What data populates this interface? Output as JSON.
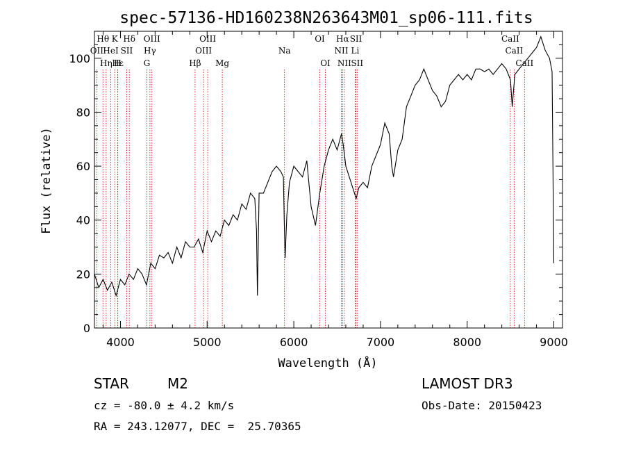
{
  "chart_data": {
    "type": "line",
    "title": "spec-57136-HD160238N263643M01_sp06-111.fits",
    "xlabel": "Wavelength (Å)",
    "ylabel": "Flux (relative)",
    "xlim": [
      3700,
      9100
    ],
    "ylim": [
      0,
      110
    ],
    "x_ticks": [
      4000,
      5000,
      6000,
      7000,
      8000,
      9000
    ],
    "y_ticks": [
      0,
      20,
      40,
      60,
      80,
      100
    ],
    "grid": false,
    "series": [
      {
        "color": "#000000",
        "x": [
          3700,
          3750,
          3800,
          3850,
          3900,
          3950,
          4000,
          4050,
          4100,
          4150,
          4200,
          4250,
          4300,
          4350,
          4400,
          4450,
          4500,
          4550,
          4600,
          4650,
          4700,
          4750,
          4800,
          4850,
          4900,
          4950,
          5000,
          5050,
          5100,
          5150,
          5200,
          5250,
          5300,
          5350,
          5400,
          5450,
          5500,
          5550,
          5570,
          5580,
          5600,
          5650,
          5700,
          5750,
          5800,
          5850,
          5880,
          5890,
          5900,
          5920,
          5950,
          6000,
          6050,
          6100,
          6150,
          6200,
          6250,
          6300,
          6350,
          6400,
          6450,
          6500,
          6550,
          6570,
          6600,
          6650,
          6700,
          6720,
          6750,
          6800,
          6850,
          6900,
          6950,
          7000,
          7050,
          7100,
          7130,
          7150,
          7200,
          7250,
          7300,
          7350,
          7400,
          7450,
          7500,
          7550,
          7600,
          7650,
          7700,
          7750,
          7800,
          7850,
          7900,
          7950,
          8000,
          8050,
          8100,
          8150,
          8200,
          8250,
          8300,
          8350,
          8400,
          8450,
          8500,
          8520,
          8550,
          8600,
          8650,
          8700,
          8750,
          8800,
          8850,
          8900,
          8950,
          8980,
          9000
        ],
        "y": [
          20,
          15,
          18,
          14,
          17,
          12,
          18,
          16,
          20,
          18,
          22,
          20,
          16,
          24,
          22,
          27,
          26,
          28,
          24,
          30,
          26,
          32,
          30,
          30,
          33,
          28,
          36,
          32,
          36,
          34,
          40,
          38,
          42,
          40,
          46,
          44,
          50,
          48,
          36,
          12,
          50,
          50,
          54,
          58,
          60,
          58,
          56,
          40,
          26,
          42,
          54,
          60,
          58,
          56,
          62,
          45,
          38,
          50,
          60,
          66,
          70,
          66,
          72,
          68,
          60,
          55,
          50,
          48,
          52,
          54,
          52,
          60,
          64,
          68,
          76,
          72,
          60,
          56,
          66,
          70,
          82,
          86,
          90,
          92,
          96,
          92,
          88,
          86,
          82,
          84,
          90,
          92,
          94,
          92,
          94,
          92,
          96,
          96,
          95,
          96,
          94,
          96,
          98,
          96,
          92,
          82,
          94,
          96,
          98,
          100,
          102,
          104,
          108,
          103,
          100,
          95,
          24
        ]
      }
    ],
    "spectral_lines": [
      {
        "label": "Hθ",
        "wavelength": 3798,
        "row": 0
      },
      {
        "label": "K",
        "wavelength": 3934,
        "row": 0
      },
      {
        "label": "Hδ",
        "wavelength": 4102,
        "row": 0
      },
      {
        "label": "OIII",
        "wavelength": 4363,
        "row": 0
      },
      {
        "label": "OIII",
        "wavelength": 5007,
        "row": 0
      },
      {
        "label": "OI",
        "wavelength": 6300,
        "row": 0
      },
      {
        "label": "Hα",
        "wavelength": 6563,
        "row": 0
      },
      {
        "label": "SII",
        "wavelength": 6717,
        "row": 0
      },
      {
        "label": "CaII",
        "wavelength": 8498,
        "row": 0
      },
      {
        "label": "OII",
        "wavelength": 3727,
        "row": 1
      },
      {
        "label": "HeI",
        "wavelength": 3889,
        "row": 1
      },
      {
        "label": "SII",
        "wavelength": 4072,
        "row": 1
      },
      {
        "label": "Hγ",
        "wavelength": 4340,
        "row": 1
      },
      {
        "label": "OIII",
        "wavelength": 4959,
        "row": 1
      },
      {
        "label": "NII",
        "wavelength": 6548,
        "row": 1
      },
      {
        "label": "Li",
        "wavelength": 6708,
        "row": 1
      },
      {
        "label": "CaII",
        "wavelength": 8542,
        "row": 1
      },
      {
        "label": "Hε",
        "wavelength": 3970,
        "row": 2
      },
      {
        "label": "Hη",
        "wavelength": 3835,
        "row": 2
      },
      {
        "label": "H",
        "wavelength": 3968,
        "row": 2
      },
      {
        "label": "G",
        "wavelength": 4305,
        "row": 2
      },
      {
        "label": "Hβ",
        "wavelength": 4861,
        "row": 2
      },
      {
        "label": "Mg",
        "wavelength": 5175,
        "row": 2
      },
      {
        "label": "Na",
        "wavelength": 5893,
        "row": 1
      },
      {
        "label": "OI",
        "wavelength": 6364,
        "row": 2
      },
      {
        "label": "NII",
        "wavelength": 6583,
        "row": 2
      },
      {
        "label": "SII",
        "wavelength": 6731,
        "row": 2
      },
      {
        "label": "CaII",
        "wavelength": 8662,
        "row": 2
      }
    ],
    "line_color": "#cc0000"
  },
  "info": {
    "object_class": "STAR",
    "subclass": "M2",
    "survey": "LAMOST DR3",
    "redshift": "cz = -80.0 ± 4.2 km/s",
    "obs_date": "Obs-Date: 20150423",
    "coords": "RA = 243.12077, DEC =  25.70365"
  }
}
